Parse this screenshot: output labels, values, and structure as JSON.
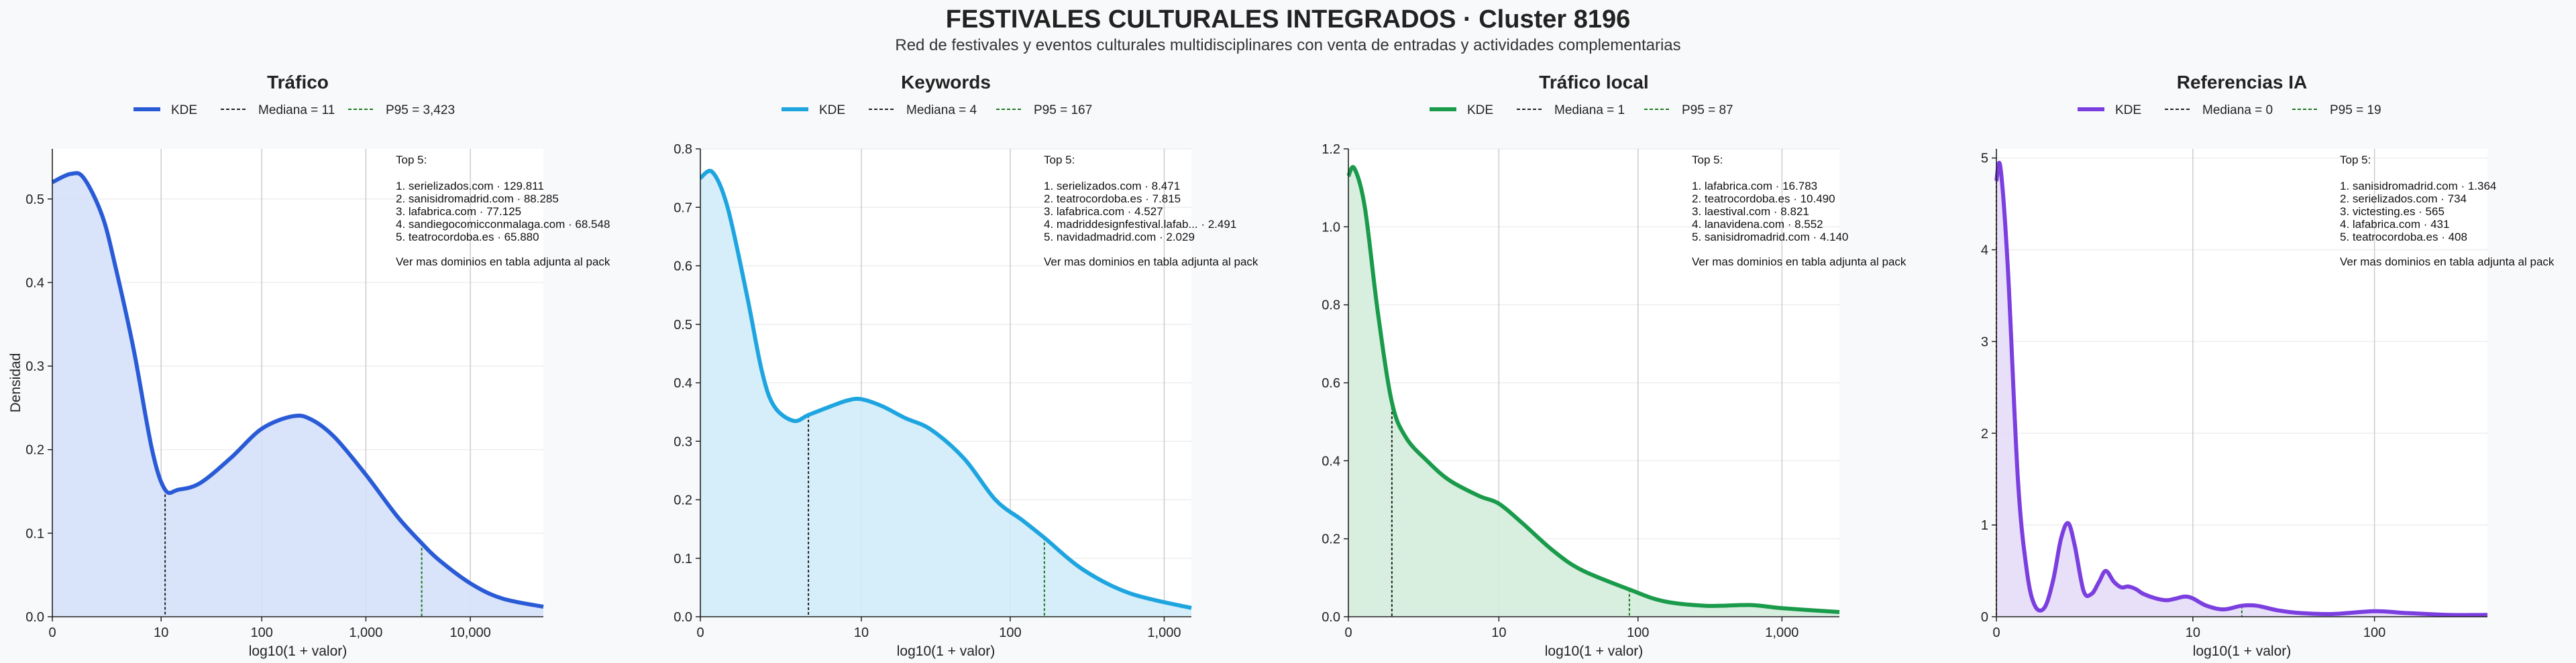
{
  "title": "FESTIVALES CULTURALES INTEGRADOS · Cluster 8196",
  "subtitle": "Red de festivales y eventos culturales multidisciplinares con venta de entradas y actividades complementarias",
  "ylabel": "Densidad",
  "colors": {
    "background": "#f8f9fb",
    "median_line": "#222222",
    "p95_line": "#1a7a1a",
    "grid": "#cccccc"
  },
  "chart_data": [
    {
      "type": "area",
      "title": "Tráfico",
      "color": "#2a5bd7",
      "fill": "#d5e0f8",
      "xlabel": "log10(1 + valor)",
      "xscale": "log10(1+x)",
      "xlim": [
        0,
        50000
      ],
      "ylim": [
        0,
        0.56
      ],
      "xticks": [
        0,
        10,
        100,
        1000,
        10000
      ],
      "xtick_labels": [
        "0",
        "10",
        "100",
        "1,000",
        "10,000"
      ],
      "yticks": [
        0,
        0.1,
        0.2,
        0.3,
        0.4,
        0.5
      ],
      "ytick_labels": [
        "0.0",
        "0.1",
        "0.2",
        "0.3",
        "0.4",
        "0.5"
      ],
      "legend": {
        "kde": "KDE",
        "median": "Mediana = 11",
        "p95": "P95 = 3,423"
      },
      "median": 11,
      "p95": 3423,
      "kde_x": [
        0,
        0.5,
        1,
        2,
        3,
        5,
        8,
        11,
        15,
        25,
        50,
        100,
        200,
        300,
        500,
        1000,
        2000,
        3423,
        5000,
        10000,
        20000,
        50000
      ],
      "kde_y": [
        0.52,
        0.53,
        0.525,
        0.48,
        0.42,
        0.32,
        0.2,
        0.152,
        0.152,
        0.16,
        0.19,
        0.225,
        0.24,
        0.236,
        0.215,
        0.17,
        0.12,
        0.088,
        0.068,
        0.04,
        0.022,
        0.012
      ],
      "top_title": "Top 5:",
      "top_items": [
        "1. serielizados.com · 129.811",
        "2. sanisidromadrid.com · 88.285",
        "3. lafabrica.com · 77.125",
        "4. sandiegocomicconmalaga.com · 68.548",
        "5. teatrocordoba.es · 65.880"
      ],
      "footnote": "Ver mas dominios en tabla adjunta al pack"
    },
    {
      "type": "area",
      "title": "Keywords",
      "color": "#1ea5e0",
      "fill": "#d0ecf9",
      "xlabel": "log10(1 + valor)",
      "xscale": "log10(1+x)",
      "xlim": [
        0,
        1500
      ],
      "ylim": [
        0,
        0.8
      ],
      "xticks": [
        0,
        10,
        100,
        1000
      ],
      "xtick_labels": [
        "0",
        "10",
        "100",
        "1,000"
      ],
      "yticks": [
        0,
        0.1,
        0.2,
        0.3,
        0.4,
        0.5,
        0.6,
        0.7,
        0.8
      ],
      "ytick_labels": [
        "0.0",
        "0.1",
        "0.2",
        "0.3",
        "0.4",
        "0.5",
        "0.6",
        "0.7",
        "0.8"
      ],
      "legend": {
        "kde": "KDE",
        "median": "Mediana = 4",
        "p95": "P95 = 167"
      },
      "median": 4,
      "p95": 167,
      "kde_x": [
        0,
        0.2,
        0.5,
        1,
        1.5,
        2,
        3,
        4,
        6,
        8,
        10,
        14,
        20,
        30,
        50,
        80,
        120,
        167,
        300,
        600,
        1500
      ],
      "kde_y": [
        0.75,
        0.76,
        0.7,
        0.55,
        0.42,
        0.36,
        0.335,
        0.345,
        0.36,
        0.37,
        0.372,
        0.36,
        0.34,
        0.32,
        0.27,
        0.2,
        0.165,
        0.135,
        0.08,
        0.04,
        0.015
      ],
      "top_title": "Top 5:",
      "top_items": [
        "1. serielizados.com · 8.471",
        "2. teatrocordoba.es · 7.815",
        "3. lafabrica.com · 4.527",
        "4. madriddesignfestival.lafab... · 2.491",
        "5. navidadmadrid.com · 2.029"
      ],
      "footnote": "Ver mas dominios en tabla adjunta al pack"
    },
    {
      "type": "area",
      "title": "Tráfico local",
      "color": "#1a9b4b",
      "fill": "#d4ecdc",
      "xlabel": "log10(1 + valor)",
      "xscale": "log10(1+x)",
      "xlim": [
        0,
        2500
      ],
      "ylim": [
        0,
        1.2
      ],
      "xticks": [
        0,
        10,
        100,
        1000
      ],
      "xtick_labels": [
        "0",
        "10",
        "100",
        "1,000"
      ],
      "yticks": [
        0,
        0.2,
        0.4,
        0.6,
        0.8,
        1.0,
        1.2
      ],
      "ytick_labels": [
        "0.0",
        "0.2",
        "0.4",
        "0.6",
        "0.8",
        "1.0",
        "1.2"
      ],
      "legend": {
        "kde": "KDE",
        "median": "Mediana = 1",
        "p95": "P95 = 87"
      },
      "median": 1,
      "p95": 87,
      "kde_x": [
        0,
        0.1,
        0.3,
        0.6,
        1,
        1.5,
        2.5,
        4,
        7,
        10,
        15,
        25,
        40,
        87,
        150,
        300,
        600,
        1000,
        2500
      ],
      "kde_y": [
        1.13,
        1.15,
        1.05,
        0.78,
        0.55,
        0.46,
        0.4,
        0.35,
        0.31,
        0.29,
        0.24,
        0.17,
        0.12,
        0.07,
        0.04,
        0.028,
        0.03,
        0.022,
        0.012
      ],
      "top_title": "Top 5:",
      "top_items": [
        "1. lafabrica.com · 16.783",
        "2. teatrocordoba.es · 10.490",
        "3. laestival.com · 8.821",
        "4. lanavidena.com · 8.552",
        "5. sanisidromadrid.com · 4.140"
      ],
      "footnote": "Ver mas dominios en tabla adjunta al pack"
    },
    {
      "type": "area",
      "title": "Referencias IA",
      "color": "#7b3fe0",
      "fill": "#e6dcf7",
      "xlabel": "log10(1 + valor)",
      "xscale": "log10(1+x)",
      "xlim": [
        0,
        400
      ],
      "ylim": [
        0,
        5.1
      ],
      "xticks": [
        0,
        10,
        100
      ],
      "xtick_labels": [
        "0",
        "10",
        "100"
      ],
      "yticks": [
        0,
        1,
        2,
        3,
        4,
        5
      ],
      "ytick_labels": [
        "0",
        "1",
        "2",
        "3",
        "4",
        "5"
      ],
      "legend": {
        "kde": "KDE",
        "median": "Mediana = 0",
        "p95": "P95 = 19"
      },
      "median": 0,
      "p95": 19,
      "kde_x": [
        0,
        0.05,
        0.15,
        0.3,
        0.45,
        0.6,
        0.8,
        1.0,
        1.2,
        1.4,
        1.6,
        1.9,
        2.2,
        2.5,
        2.8,
        3.2,
        3.6,
        4.0,
        4.5,
        5,
        6,
        7,
        8,
        9,
        10,
        12,
        15,
        19,
        23,
        30,
        40,
        60,
        100,
        150,
        250,
        400
      ],
      "kde_y": [
        4.75,
        4.9,
        3.8,
        1.5,
        0.5,
        0.12,
        0.1,
        0.4,
        0.85,
        1.02,
        0.78,
        0.28,
        0.25,
        0.38,
        0.5,
        0.38,
        0.32,
        0.33,
        0.3,
        0.25,
        0.2,
        0.18,
        0.2,
        0.22,
        0.2,
        0.12,
        0.08,
        0.12,
        0.12,
        0.07,
        0.04,
        0.03,
        0.06,
        0.04,
        0.02,
        0.02
      ],
      "top_title": "Top 5:",
      "top_items": [
        "1. sanisidromadrid.com · 1.364",
        "2. serielizados.com · 734",
        "3. victesting.es · 565",
        "4. lafabrica.com · 431",
        "5. teatrocordoba.es · 408"
      ],
      "footnote": "Ver mas dominios en tabla adjunta al pack"
    }
  ]
}
